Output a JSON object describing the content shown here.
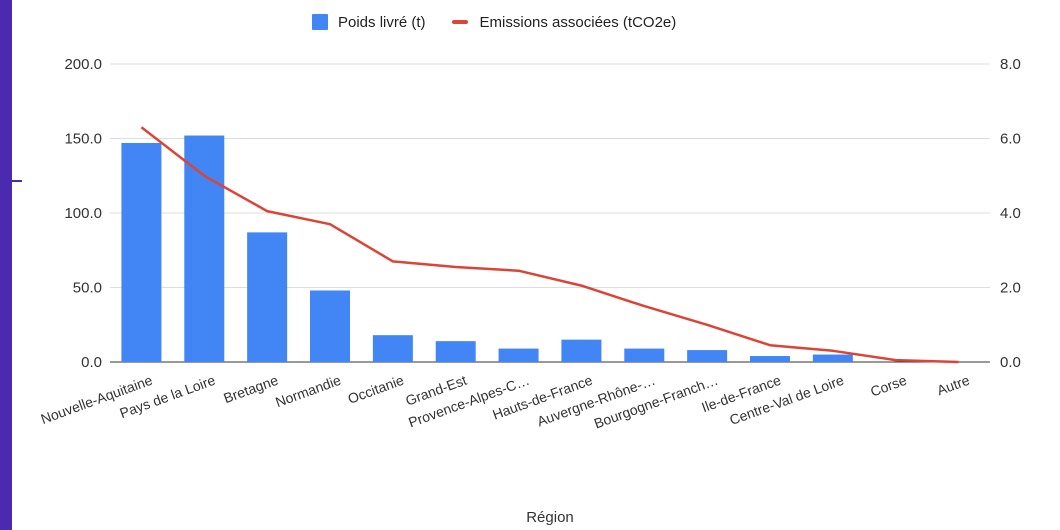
{
  "colors": {
    "bar": "#4285f4",
    "line": "#db4437",
    "grid": "#dddddd",
    "text": "#333333",
    "frame": "#4a2bb0"
  },
  "chart_data": {
    "type": "bar",
    "categories": [
      "Nouvelle-Aquitaine",
      "Pays de la Loire",
      "Bretagne",
      "Normandie",
      "Occitanie",
      "Grand-Est",
      "Provence-Alpes-C…",
      "Hauts-de-France",
      "Auvergne-Rhône-…",
      "Bourgogne-Franch…",
      "Ile-de-France",
      "Centre-Val de Loire",
      "Corse",
      "Autre"
    ],
    "series": [
      {
        "name": "Poids livré (t)",
        "type": "bar",
        "axis": "left",
        "values": [
          147,
          152,
          87,
          48,
          18,
          14,
          9,
          15,
          9,
          8,
          4,
          5,
          0,
          0
        ]
      },
      {
        "name": "Emissions associées (tCO2e)",
        "type": "line",
        "axis": "right",
        "values": [
          6.3,
          5.0,
          4.05,
          3.7,
          2.7,
          2.55,
          2.45,
          2.05,
          1.5,
          1.0,
          0.45,
          0.3,
          0.05,
          0.0
        ]
      }
    ],
    "xlabel": "Région",
    "ylabel": "",
    "ylim": [
      0,
      200
    ],
    "y2lim": [
      0,
      8
    ],
    "yticks": [
      "0.0",
      "50.0",
      "100.0",
      "150.0",
      "200.0"
    ],
    "y2ticks": [
      "0.0",
      "2.0",
      "4.0",
      "6.0",
      "8.0"
    ],
    "grid": true,
    "legend": "top-center"
  }
}
